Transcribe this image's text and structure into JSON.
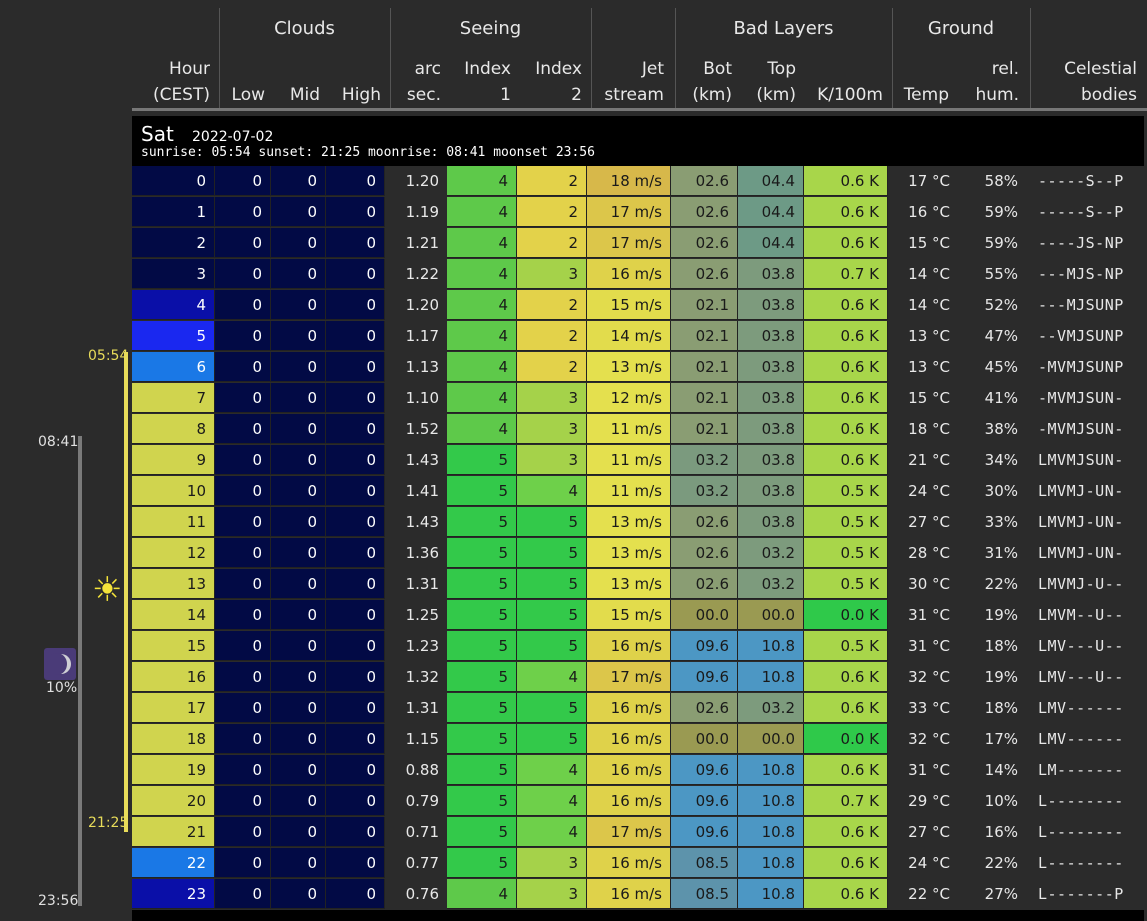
{
  "header": {
    "groups": {
      "clouds": "Clouds",
      "seeing": "Seeing",
      "bad_layers": "Bad Layers",
      "ground": "Ground"
    },
    "columns": {
      "hour": "Hour\n(CEST)",
      "low": "Low",
      "mid": "Mid",
      "high": "High",
      "arcsec": "arc\nsec.",
      "index1": "Index\n1",
      "index2": "Index\n2",
      "jet": "Jet\nstream",
      "bot": "Bot\n(km)",
      "top": "Top\n(km)",
      "k100m": "K/100m",
      "temp": "Temp",
      "hum": "rel.\nhum.",
      "celestial": "Celestial\nbodies"
    }
  },
  "day": {
    "name": "Sat",
    "date": "2022-07-02",
    "sun_moon": "sunrise: 05:54 sunset: 21:25 moonrise: 08:41 moonset 23:56"
  },
  "sidebar": {
    "sunrise": "05:54",
    "sunset": "21:25",
    "moonrise": "08:41",
    "moonset": "23:56",
    "moon_illumination": "10%",
    "sun_icon": "sun-icon",
    "moon_icon": "moon-phase-icon"
  },
  "rows": [
    {
      "hour": "0",
      "low": "0",
      "mid": "0",
      "high": "0",
      "arcsec": "1.20",
      "i1": "4",
      "i2": "2",
      "jet": "18 m/s",
      "bot": "02.6",
      "top": "04.4",
      "k": "0.6 K",
      "temp": "17 °C",
      "hum": "58%",
      "cel": "-----S--P"
    },
    {
      "hour": "1",
      "low": "0",
      "mid": "0",
      "high": "0",
      "arcsec": "1.19",
      "i1": "4",
      "i2": "2",
      "jet": "17 m/s",
      "bot": "02.6",
      "top": "04.4",
      "k": "0.6 K",
      "temp": "16 °C",
      "hum": "59%",
      "cel": "-----S--P"
    },
    {
      "hour": "2",
      "low": "0",
      "mid": "0",
      "high": "0",
      "arcsec": "1.21",
      "i1": "4",
      "i2": "2",
      "jet": "17 m/s",
      "bot": "02.6",
      "top": "04.4",
      "k": "0.6 K",
      "temp": "15 °C",
      "hum": "59%",
      "cel": "----JS-NP"
    },
    {
      "hour": "3",
      "low": "0",
      "mid": "0",
      "high": "0",
      "arcsec": "1.22",
      "i1": "4",
      "i2": "3",
      "jet": "16 m/s",
      "bot": "02.6",
      "top": "03.8",
      "k": "0.7 K",
      "temp": "14 °C",
      "hum": "55%",
      "cel": "---MJS-NP"
    },
    {
      "hour": "4",
      "low": "0",
      "mid": "0",
      "high": "0",
      "arcsec": "1.20",
      "i1": "4",
      "i2": "2",
      "jet": "15 m/s",
      "bot": "02.1",
      "top": "03.8",
      "k": "0.6 K",
      "temp": "14 °C",
      "hum": "52%",
      "cel": "---MJSUNP"
    },
    {
      "hour": "5",
      "low": "0",
      "mid": "0",
      "high": "0",
      "arcsec": "1.17",
      "i1": "4",
      "i2": "2",
      "jet": "14 m/s",
      "bot": "02.1",
      "top": "03.8",
      "k": "0.6 K",
      "temp": "13 °C",
      "hum": "47%",
      "cel": "--VMJSUNP"
    },
    {
      "hour": "6",
      "low": "0",
      "mid": "0",
      "high": "0",
      "arcsec": "1.13",
      "i1": "4",
      "i2": "2",
      "jet": "13 m/s",
      "bot": "02.1",
      "top": "03.8",
      "k": "0.6 K",
      "temp": "13 °C",
      "hum": "45%",
      "cel": "-MVMJSUNP"
    },
    {
      "hour": "7",
      "low": "0",
      "mid": "0",
      "high": "0",
      "arcsec": "1.10",
      "i1": "4",
      "i2": "3",
      "jet": "12 m/s",
      "bot": "02.1",
      "top": "03.8",
      "k": "0.6 K",
      "temp": "15 °C",
      "hum": "41%",
      "cel": "-MVMJSUN-"
    },
    {
      "hour": "8",
      "low": "0",
      "mid": "0",
      "high": "0",
      "arcsec": "1.52",
      "i1": "4",
      "i2": "3",
      "jet": "11 m/s",
      "bot": "02.1",
      "top": "03.8",
      "k": "0.6 K",
      "temp": "18 °C",
      "hum": "38%",
      "cel": "-MVMJSUN-"
    },
    {
      "hour": "9",
      "low": "0",
      "mid": "0",
      "high": "0",
      "arcsec": "1.43",
      "i1": "5",
      "i2": "3",
      "jet": "11 m/s",
      "bot": "03.2",
      "top": "03.8",
      "k": "0.6 K",
      "temp": "21 °C",
      "hum": "34%",
      "cel": "LMVMJSUN-"
    },
    {
      "hour": "10",
      "low": "0",
      "mid": "0",
      "high": "0",
      "arcsec": "1.41",
      "i1": "5",
      "i2": "4",
      "jet": "11 m/s",
      "bot": "03.2",
      "top": "03.8",
      "k": "0.5 K",
      "temp": "24 °C",
      "hum": "30%",
      "cel": "LMVMJ-UN-"
    },
    {
      "hour": "11",
      "low": "0",
      "mid": "0",
      "high": "0",
      "arcsec": "1.43",
      "i1": "5",
      "i2": "5",
      "jet": "13 m/s",
      "bot": "02.6",
      "top": "03.8",
      "k": "0.5 K",
      "temp": "27 °C",
      "hum": "33%",
      "cel": "LMVMJ-UN-"
    },
    {
      "hour": "12",
      "low": "0",
      "mid": "0",
      "high": "0",
      "arcsec": "1.36",
      "i1": "5",
      "i2": "5",
      "jet": "13 m/s",
      "bot": "02.6",
      "top": "03.2",
      "k": "0.5 K",
      "temp": "28 °C",
      "hum": "31%",
      "cel": "LMVMJ-UN-"
    },
    {
      "hour": "13",
      "low": "0",
      "mid": "0",
      "high": "0",
      "arcsec": "1.31",
      "i1": "5",
      "i2": "5",
      "jet": "13 m/s",
      "bot": "02.6",
      "top": "03.2",
      "k": "0.5 K",
      "temp": "30 °C",
      "hum": "22%",
      "cel": "LMVMJ-U--"
    },
    {
      "hour": "14",
      "low": "0",
      "mid": "0",
      "high": "0",
      "arcsec": "1.25",
      "i1": "5",
      "i2": "5",
      "jet": "15 m/s",
      "bot": "00.0",
      "top": "00.0",
      "k": "0.0 K",
      "temp": "31 °C",
      "hum": "19%",
      "cel": "LMVM--U--"
    },
    {
      "hour": "15",
      "low": "0",
      "mid": "0",
      "high": "0",
      "arcsec": "1.23",
      "i1": "5",
      "i2": "5",
      "jet": "16 m/s",
      "bot": "09.6",
      "top": "10.8",
      "k": "0.5 K",
      "temp": "31 °C",
      "hum": "18%",
      "cel": "LMV---U--"
    },
    {
      "hour": "16",
      "low": "0",
      "mid": "0",
      "high": "0",
      "arcsec": "1.32",
      "i1": "5",
      "i2": "4",
      "jet": "17 m/s",
      "bot": "09.6",
      "top": "10.8",
      "k": "0.6 K",
      "temp": "32 °C",
      "hum": "19%",
      "cel": "LMV---U--"
    },
    {
      "hour": "17",
      "low": "0",
      "mid": "0",
      "high": "0",
      "arcsec": "1.31",
      "i1": "5",
      "i2": "5",
      "jet": "16 m/s",
      "bot": "02.6",
      "top": "03.2",
      "k": "0.6 K",
      "temp": "33 °C",
      "hum": "18%",
      "cel": "LMV------"
    },
    {
      "hour": "18",
      "low": "0",
      "mid": "0",
      "high": "0",
      "arcsec": "1.15",
      "i1": "5",
      "i2": "5",
      "jet": "16 m/s",
      "bot": "00.0",
      "top": "00.0",
      "k": "0.0 K",
      "temp": "32 °C",
      "hum": "17%",
      "cel": "LMV------"
    },
    {
      "hour": "19",
      "low": "0",
      "mid": "0",
      "high": "0",
      "arcsec": "0.88",
      "i1": "5",
      "i2": "4",
      "jet": "16 m/s",
      "bot": "09.6",
      "top": "10.8",
      "k": "0.6 K",
      "temp": "31 °C",
      "hum": "14%",
      "cel": "LM-------"
    },
    {
      "hour": "20",
      "low": "0",
      "mid": "0",
      "high": "0",
      "arcsec": "0.79",
      "i1": "5",
      "i2": "4",
      "jet": "16 m/s",
      "bot": "09.6",
      "top": "10.8",
      "k": "0.7 K",
      "temp": "29 °C",
      "hum": "10%",
      "cel": "L--------"
    },
    {
      "hour": "21",
      "low": "0",
      "mid": "0",
      "high": "0",
      "arcsec": "0.71",
      "i1": "5",
      "i2": "4",
      "jet": "17 m/s",
      "bot": "09.6",
      "top": "10.8",
      "k": "0.6 K",
      "temp": "27 °C",
      "hum": "16%",
      "cel": "L--------"
    },
    {
      "hour": "22",
      "low": "0",
      "mid": "0",
      "high": "0",
      "arcsec": "0.77",
      "i1": "5",
      "i2": "3",
      "jet": "16 m/s",
      "bot": "08.5",
      "top": "10.8",
      "k": "0.6 K",
      "temp": "24 °C",
      "hum": "22%",
      "cel": "L--------"
    },
    {
      "hour": "23",
      "low": "0",
      "mid": "0",
      "high": "0",
      "arcsec": "0.76",
      "i1": "4",
      "i2": "3",
      "jet": "16 m/s",
      "bot": "08.5",
      "top": "10.8",
      "k": "0.6 K",
      "temp": "22 °C",
      "hum": "27%",
      "cel": "L-------P"
    }
  ],
  "colors": {
    "hour_night": "#020a45",
    "hour_twilight_deep": "#0a0fa8",
    "hour_twilight_mid": "#1a28f0",
    "hour_twilight_light": "#1a78e6",
    "hour_day": "#d0d44e",
    "cloud_clear": "#020a45",
    "index_4": "#5ec94a",
    "index_5": "#33c94a",
    "index2_2": "#e3d24a",
    "index2_3": "#a5d24a",
    "index2_4": "#6ed04a",
    "index2_5": "#33c94a"
  }
}
